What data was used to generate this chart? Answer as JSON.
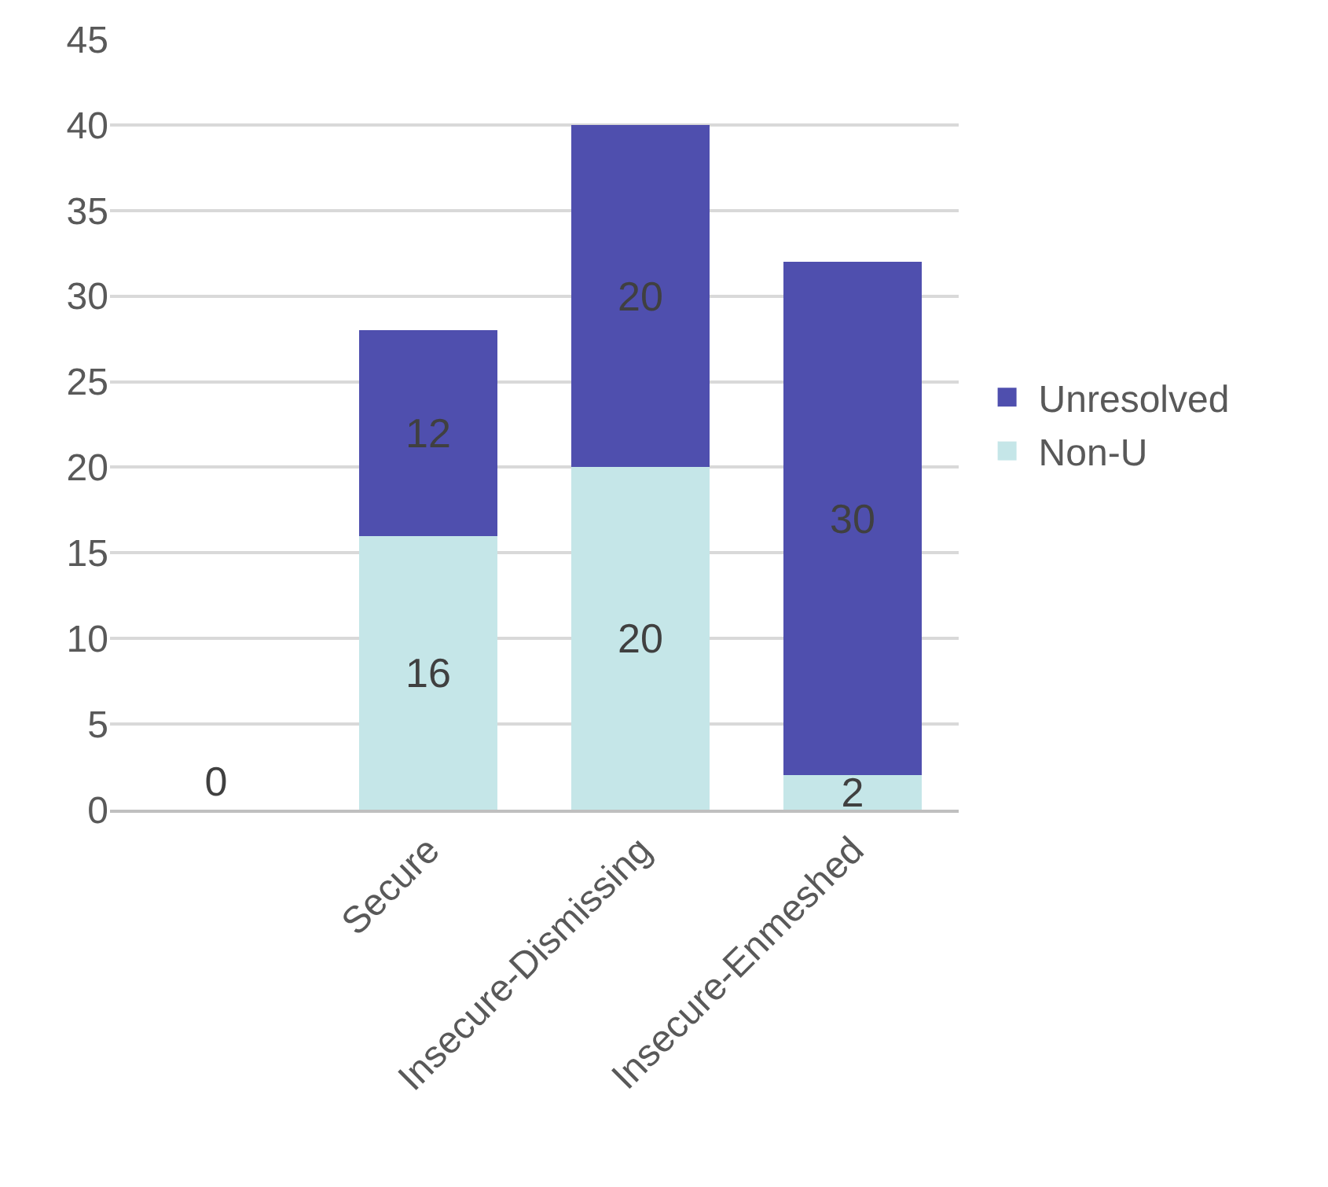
{
  "chart_data": {
    "type": "bar",
    "stacked": true,
    "categories": [
      null,
      "Secure",
      "Insecure-Dismissing",
      "Insecure-Enmeshed"
    ],
    "series": [
      {
        "name": "Non-U",
        "color": "#c5e6e8",
        "values": [
          0,
          16,
          20,
          2
        ]
      },
      {
        "name": "Unresolved",
        "color": "#4f4fae",
        "values": [
          null,
          12,
          20,
          30
        ]
      }
    ],
    "ylim": [
      0,
      45
    ],
    "yticks": [
      0,
      5,
      10,
      15,
      20,
      25,
      30,
      35,
      40,
      45
    ],
    "grid": "y",
    "legend": "right",
    "data_labels": true
  }
}
